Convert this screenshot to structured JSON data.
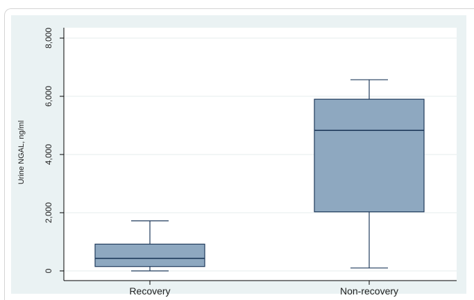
{
  "chart_data": {
    "type": "box",
    "title": "",
    "xlabel": "",
    "ylabel": "Urine NGAL, ng/ml",
    "ylim": [
      0,
      8000
    ],
    "yticks": [
      0,
      2000,
      4000,
      6000,
      8000
    ],
    "ytick_labels": [
      "0",
      "2,000",
      "4,000",
      "6,000",
      "8,000"
    ],
    "grid": true,
    "categories": [
      "Recovery",
      "Non-recovery"
    ],
    "boxes": [
      {
        "category": "Recovery",
        "whisker_low": 0,
        "q1": 150,
        "median": 430,
        "q3": 920,
        "whisker_high": 1720
      },
      {
        "category": "Non-recovery",
        "whisker_low": 100,
        "q1": 2030,
        "median": 4830,
        "q3": 5900,
        "whisker_high": 6570
      }
    ],
    "colors": {
      "box_fill": "#8ea8c0",
      "box_stroke": "#1f3a5b",
      "plot_bg": "#ffffff",
      "panel_bg": "#eaf2f3",
      "grid": "#e6ecee"
    }
  }
}
